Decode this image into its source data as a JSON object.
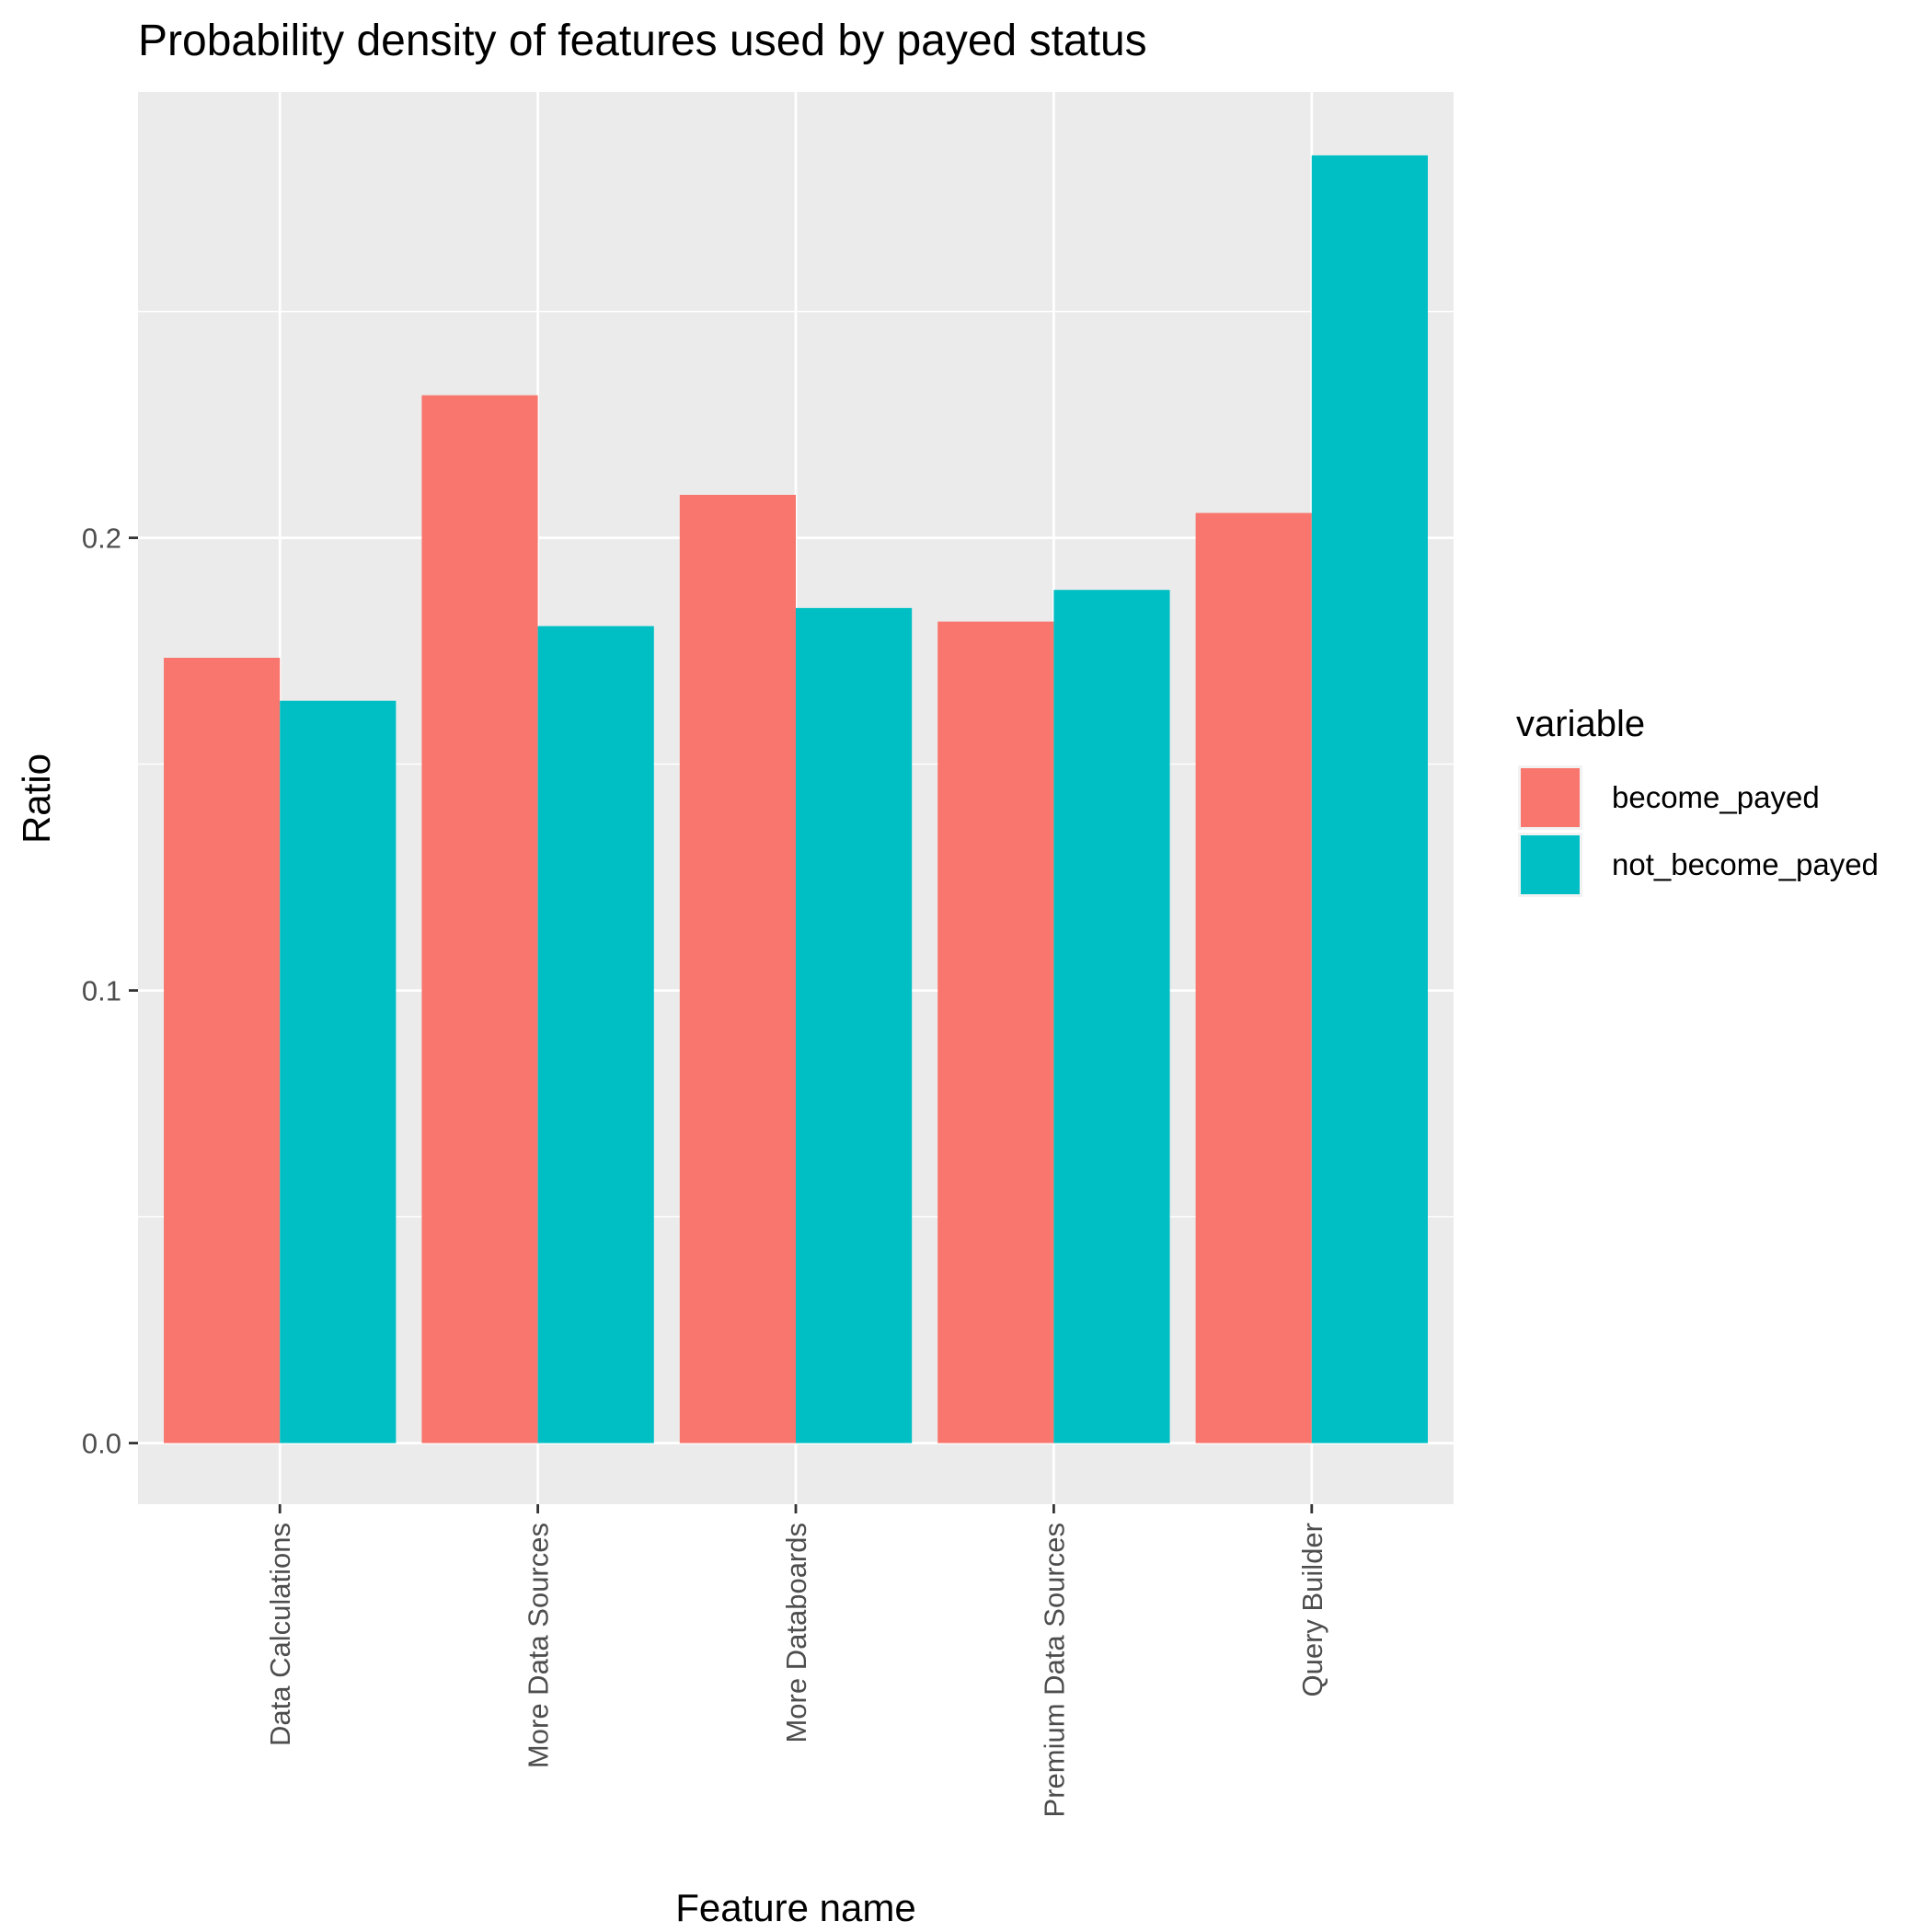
{
  "chart_data": {
    "type": "bar",
    "title": "Probability density of features used by payed status",
    "xlabel": "Feature name",
    "ylabel": "Ratio",
    "categories": [
      "Data Calculations",
      "More Data Sources",
      "More Databoards",
      "Premium Data Sources",
      "Query Builder"
    ],
    "series": [
      {
        "name": "become_payed",
        "values": [
          0.1735,
          0.2315,
          0.2095,
          0.1815,
          0.2055
        ],
        "color": "#F8766D"
      },
      {
        "name": "not_become_payed",
        "values": [
          0.164,
          0.1805,
          0.1845,
          0.1885,
          0.2845
        ],
        "color": "#00BFC4"
      }
    ],
    "ylim": [
      -0.0135,
      0.2985
    ],
    "yticks": [
      0.0,
      0.1,
      0.2
    ],
    "ytick_labels": [
      "0.0",
      "0.1",
      "0.2"
    ],
    "grid": true,
    "panel_color": "#EBEBEB",
    "legend": {
      "title": "variable",
      "position": "right"
    }
  }
}
